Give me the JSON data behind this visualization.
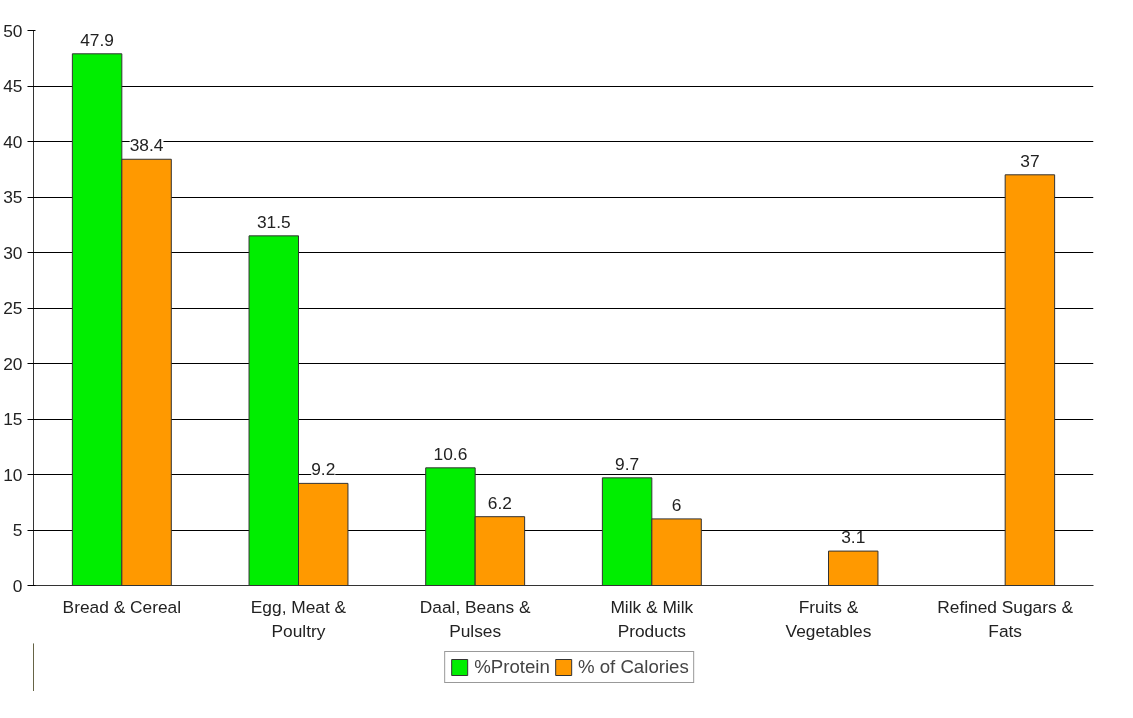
{
  "chart_data": {
    "type": "bar",
    "categories": [
      "Bread & Cereal",
      "Egg, Meat & Poultry",
      "Daal, Beans & Pulses",
      "Milk & Milk Products",
      "Fruits & Vegetables",
      "Refined Sugars & Fats"
    ],
    "series": [
      {
        "name": "%Protein",
        "color": "#00ee00",
        "values": [
          47.9,
          31.5,
          10.6,
          9.7,
          null,
          null
        ]
      },
      {
        "name": "% of Calories",
        "color": "#ff9900",
        "values": [
          38.4,
          9.2,
          6.2,
          6,
          3.1,
          37
        ]
      }
    ],
    "ylim": [
      0,
      50
    ],
    "yticks": [
      0,
      5,
      10,
      15,
      20,
      25,
      30,
      35,
      40,
      45,
      50
    ],
    "grid": "y",
    "legend": "bottom",
    "data_labels": true
  }
}
